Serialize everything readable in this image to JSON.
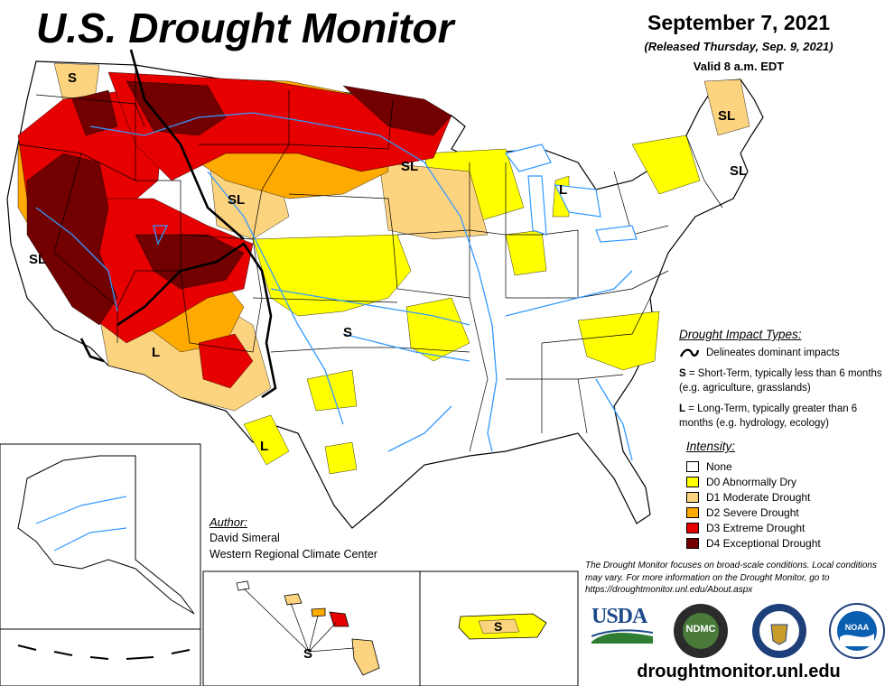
{
  "header": {
    "title": "U.S. Drought Monitor",
    "date": "September 7, 2021",
    "released": "(Released Thursday, Sep. 9, 2021)",
    "valid": "Valid 8 a.m. EDT"
  },
  "impact_types": {
    "heading": "Drought Impact Types:",
    "delineates": "Delineates dominant impacts",
    "s_key": "S",
    "s_text": "= Short-Term, typically less than 6 months (e.g. agriculture, grasslands)",
    "l_key": "L",
    "l_text": "= Long-Term, typically greater than 6 months (e.g. hydrology, ecology)"
  },
  "intensity": {
    "heading": "Intensity:",
    "levels": [
      {
        "label": "None",
        "color": "#ffffff"
      },
      {
        "label": "D0 Abnormally Dry",
        "color": "#ffff00"
      },
      {
        "label": "D1 Moderate Drought",
        "color": "#fcd37f"
      },
      {
        "label": "D2 Severe Drought",
        "color": "#ffaa00"
      },
      {
        "label": "D3 Extreme Drought",
        "color": "#e60000"
      },
      {
        "label": "D4 Exceptional Drought",
        "color": "#730000"
      }
    ]
  },
  "author": {
    "heading": "Author:",
    "name": "David Simeral",
    "org": "Western Regional Climate Center"
  },
  "disclaimer": "The Drought Monitor focuses on broad-scale conditions. Local conditions may vary. For more information on the Drought Monitor, go to https://droughtmonitor.unl.edu/About.aspx",
  "website": "droughtmonitor.unl.edu",
  "map_labels": {
    "wa": "S",
    "northern_rockies": "SL",
    "nd": "SL",
    "ca_nv": "SL",
    "az": "L",
    "ks": "S",
    "tx": "L",
    "mi": "L",
    "me": "SL",
    "nh": "SL",
    "hawaii": "S",
    "puerto_rico": "S"
  },
  "logos": {
    "usda": "USDA",
    "ndmc": "NDMC",
    "noaa": "NOAA"
  },
  "colors": {
    "none": "#ffffff",
    "d0": "#ffff00",
    "d1": "#fcd37f",
    "d2": "#ffaa00",
    "d3": "#e60000",
    "d4": "#730000",
    "river": "#3399ff",
    "boundary": "#000000"
  }
}
